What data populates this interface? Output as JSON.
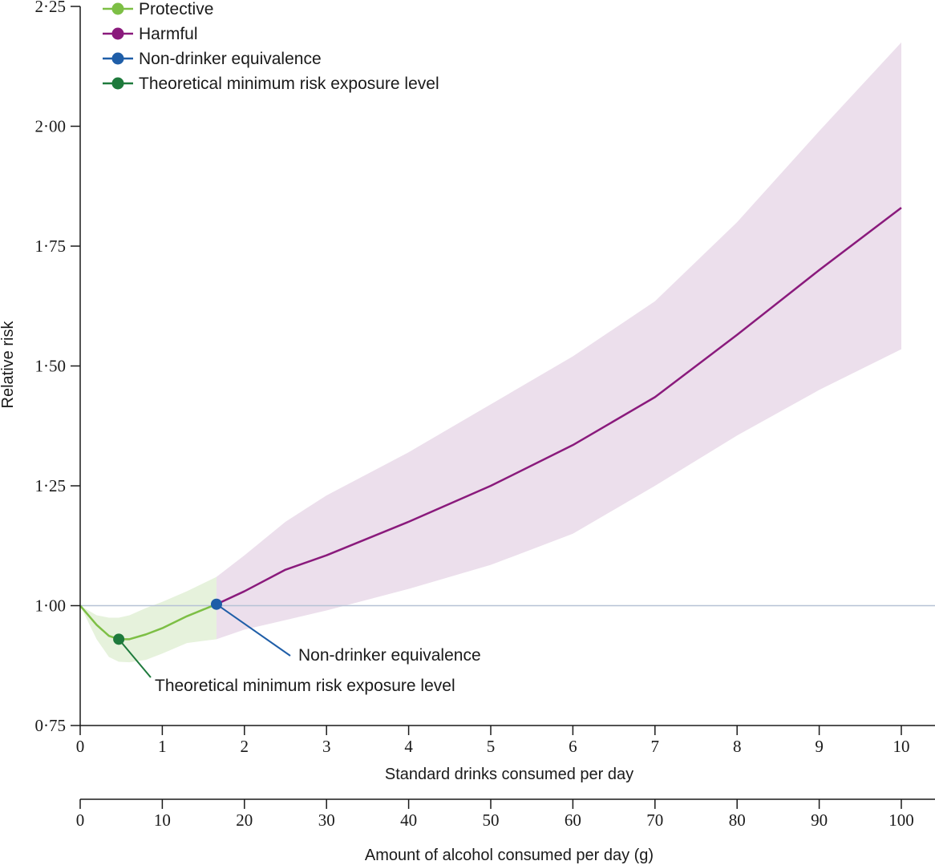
{
  "chart_data": {
    "type": "line",
    "xlabel": "Standard drinks consumed per day",
    "x2label": "Amount of alcohol consumed per day (g)",
    "ylabel": "Relative risk",
    "xlim": [
      0,
      10
    ],
    "ylim": [
      0.75,
      2.25
    ],
    "x_ticks": [
      "0",
      "1",
      "2",
      "3",
      "4",
      "5",
      "6",
      "7",
      "8",
      "9",
      "10"
    ],
    "x2_ticks": [
      "0",
      "10",
      "20",
      "30",
      "40",
      "50",
      "60",
      "70",
      "80",
      "90",
      "100"
    ],
    "y_ticks": [
      "0·75",
      "1·00",
      "1·25",
      "1·50",
      "1·75",
      "2·00",
      "2·25"
    ],
    "reference_line": 1.0,
    "colors": {
      "protective": "#7dbf45",
      "protective_band": "#e6f2dc",
      "harmful": "#8a1a7c",
      "harmful_band": "#ecdfec",
      "non_drinker_point": "#1f5ea8",
      "tmrel_point": "#1e7a3c",
      "reference": "#b6c2d6"
    },
    "legend": [
      {
        "label": "Protective",
        "color": "#7dbf45"
      },
      {
        "label": "Harmful",
        "color": "#8a1a7c"
      },
      {
        "label": "Non-drinker equivalence",
        "color": "#1f5ea8"
      },
      {
        "label": "Theoretical minimum risk exposure level",
        "color": "#1e7a3c"
      }
    ],
    "series": [
      {
        "name": "Protective",
        "x": [
          0,
          0.2,
          0.35,
          0.47,
          0.6,
          0.8,
          1.0,
          1.3,
          1.66
        ],
        "y": [
          1.0,
          0.96,
          0.937,
          0.93,
          0.93,
          0.94,
          0.953,
          0.978,
          1.003
        ],
        "lower": [
          1.0,
          0.93,
          0.893,
          0.883,
          0.882,
          0.887,
          0.9,
          0.922,
          0.93
        ],
        "upper": [
          1.0,
          0.98,
          0.975,
          0.975,
          0.98,
          0.995,
          1.008,
          1.03,
          1.06
        ]
      },
      {
        "name": "Harmful",
        "x": [
          1.66,
          2.0,
          2.5,
          3.0,
          4.0,
          5.0,
          6.0,
          7.0,
          8.0,
          9.0,
          10.0
        ],
        "y": [
          1.003,
          1.03,
          1.075,
          1.105,
          1.175,
          1.25,
          1.335,
          1.435,
          1.565,
          1.7,
          1.83
        ],
        "lower": [
          0.93,
          0.95,
          0.97,
          0.99,
          1.035,
          1.085,
          1.15,
          1.25,
          1.355,
          1.45,
          1.535
        ],
        "upper": [
          1.06,
          1.105,
          1.175,
          1.23,
          1.32,
          1.42,
          1.52,
          1.635,
          1.8,
          1.99,
          2.175
        ]
      }
    ],
    "points": [
      {
        "label": "Non-drinker equivalence",
        "x": 1.66,
        "y": 1.003
      },
      {
        "label": "Theoretical minimum risk exposure level",
        "x": 0.47,
        "y": 0.93
      }
    ]
  }
}
